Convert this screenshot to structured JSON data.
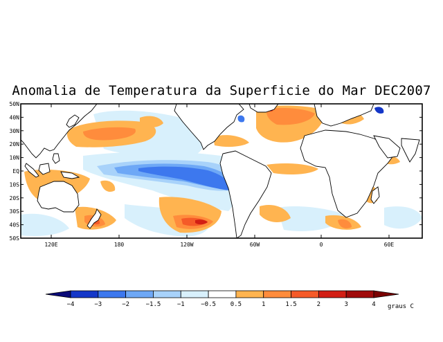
{
  "map": {
    "title": "Anomalia de Temperatura da Superficie do Mar DEC2007",
    "lat_labels": [
      "50N",
      "40N",
      "30N",
      "20N",
      "10N",
      "EQ",
      "10S",
      "20S",
      "30S",
      "40S",
      "50S"
    ],
    "lon_labels": [
      "120E",
      "180",
      "120W",
      "60W",
      "0",
      "60E"
    ],
    "colorbar": {
      "unit": "graus C",
      "labels": [
        "-4",
        "-3",
        "-2",
        "-1.5",
        "-1",
        "-0.5",
        "0.5",
        "1",
        "1.5",
        "2",
        "3",
        "4"
      ],
      "colors": [
        "#0a0a78",
        "#1437c8",
        "#3d78ee",
        "#6ea8f6",
        "#a8d2fa",
        "#d8f0fc",
        "#ffffff",
        "#ffb450",
        "#ff8c3c",
        "#f55a28",
        "#d21e14",
        "#a00a0a",
        "#7a0000"
      ]
    }
  }
}
